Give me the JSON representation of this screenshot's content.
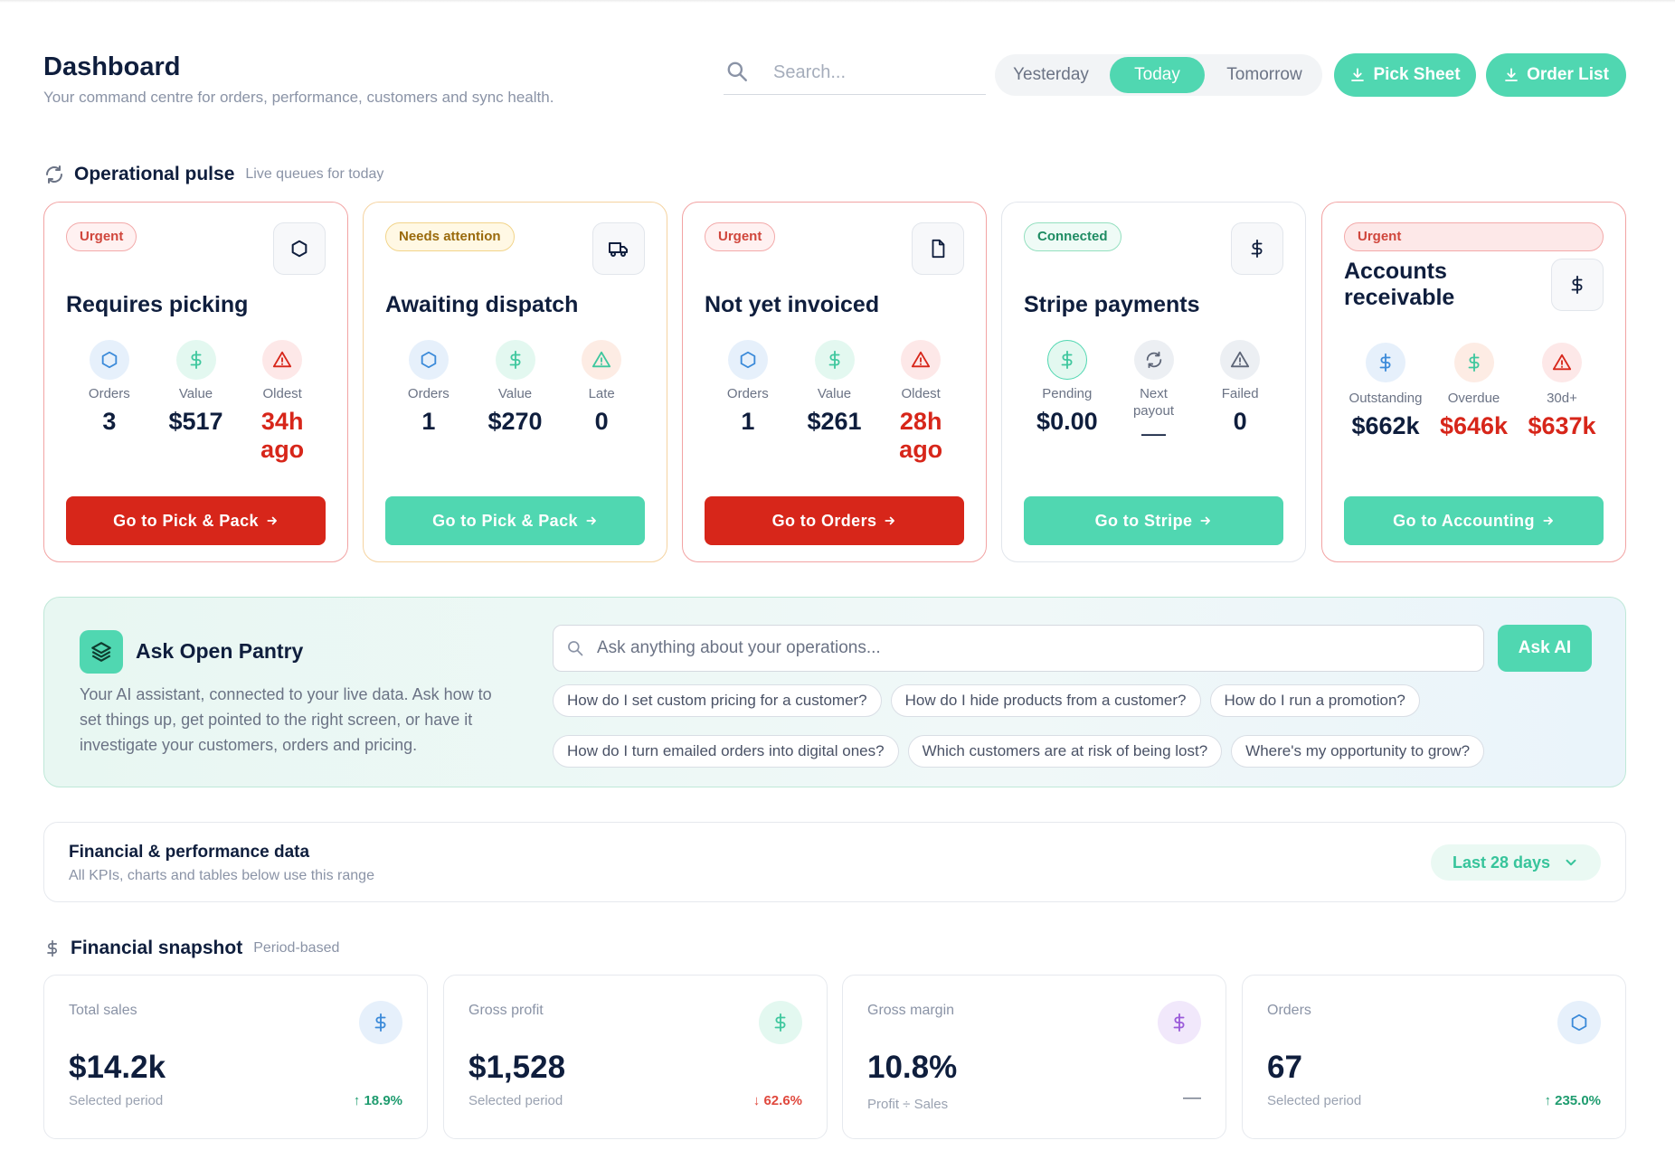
{
  "header": {
    "title": "Dashboard",
    "subtitle": "Your command centre for orders, performance, customers and sync health.",
    "search_placeholder": "Search...",
    "day_tabs": [
      "Yesterday",
      "Today",
      "Tomorrow"
    ],
    "selected_day": "Today",
    "pick_sheet_label": "Pick Sheet",
    "order_list_label": "Order List"
  },
  "pulse": {
    "title": "Operational pulse",
    "subtitle": "Live queues for today",
    "cards": [
      {
        "badge": "Urgent",
        "title": "Requires picking",
        "metrics": [
          {
            "label": "Orders",
            "value": "3"
          },
          {
            "label": "Value",
            "value": "$517"
          },
          {
            "label": "Oldest",
            "value": "34h ago"
          }
        ],
        "cta": "Go to Pick & Pack"
      },
      {
        "badge": "Needs attention",
        "title": "Awaiting dispatch",
        "metrics": [
          {
            "label": "Orders",
            "value": "1"
          },
          {
            "label": "Value",
            "value": "$270"
          },
          {
            "label": "Late",
            "value": "0"
          }
        ],
        "cta": "Go to Pick & Pack"
      },
      {
        "badge": "Urgent",
        "title": "Not yet invoiced",
        "metrics": [
          {
            "label": "Orders",
            "value": "1"
          },
          {
            "label": "Value",
            "value": "$261"
          },
          {
            "label": "Oldest",
            "value": "28h ago"
          }
        ],
        "cta": "Go to Orders"
      },
      {
        "badge": "Connected",
        "title": "Stripe payments",
        "metrics": [
          {
            "label": "Pending",
            "value": "$0.00"
          },
          {
            "label": "Next payout",
            "value": "—"
          },
          {
            "label": "Failed",
            "value": "0"
          }
        ],
        "cta": "Go to Stripe"
      },
      {
        "badge": "Urgent",
        "title": "Accounts receivable",
        "metrics": [
          {
            "label": "Outstanding",
            "value": "$662k"
          },
          {
            "label": "Overdue",
            "value": "$646k"
          },
          {
            "label": "30d+",
            "value": "$637k"
          }
        ],
        "cta": "Go to Accounting"
      }
    ]
  },
  "ai": {
    "title": "Ask Open Pantry",
    "description": "Your AI assistant, connected to your live data. Ask how to set things up, get pointed to the right screen, or have it investigate your customers, orders and pricing.",
    "input_placeholder": "Ask anything about your operations...",
    "ask_label": "Ask AI",
    "suggestions": [
      "How do I set custom pricing for a customer?",
      "How do I hide products from a customer?",
      "How do I run a promotion?",
      "How do I turn emailed orders into digital ones?",
      "Which customers are at risk of being lost?",
      "Where's my opportunity to grow?"
    ]
  },
  "range": {
    "title": "Financial & performance data",
    "subtitle": "All KPIs, charts and tables below use this range",
    "selected": "Last 28 days"
  },
  "snapshot": {
    "title": "Financial snapshot",
    "subtitle": "Period-based",
    "kpis": [
      {
        "label": "Total sales",
        "value": "$14.2k",
        "sub": "Selected period",
        "change": "↑ 18.9%"
      },
      {
        "label": "Gross profit",
        "value": "$1,528",
        "sub": "Selected period",
        "change": "↓ 62.6%"
      },
      {
        "label": "Gross margin",
        "value": "10.8%",
        "sub": "Profit ÷ Sales",
        "change": "—"
      },
      {
        "label": "Orders",
        "value": "67",
        "sub": "Selected period",
        "change": "↑ 235.0%"
      }
    ]
  },
  "colors": {
    "accent": "#50d7b1",
    "danger": "#d7261a",
    "text": "#0f1e3d",
    "muted": "#8a93a6"
  },
  "icons": {
    "search": "search-icon",
    "download": "download-icon",
    "refresh": "refresh-icon",
    "box": "box-icon",
    "truck": "truck-icon",
    "document": "document-icon",
    "dollar": "dollar-icon",
    "alert": "alert-triangle-icon",
    "arrow": "arrow-right-icon",
    "layers": "layers-icon",
    "chevron": "chevron-down-icon"
  }
}
